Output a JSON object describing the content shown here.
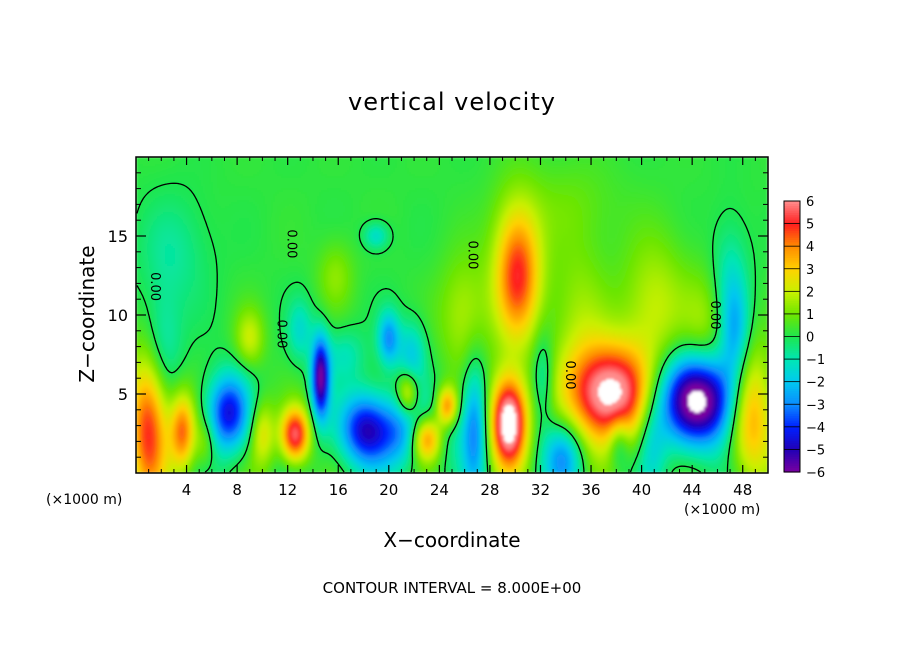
{
  "chart_data": {
    "type": "heatmap",
    "title": "vertical velocity",
    "xlabel": "X−coordinate",
    "ylabel": "Z−coordinate",
    "x_unit_label_left": "(×1000 m)",
    "x_unit_label_right": "(×1000 m)",
    "footer": "CONTOUR INTERVAL = 8.000E+00",
    "xlim": [
      0,
      50
    ],
    "ylim": [
      0,
      20
    ],
    "x_ticks": [
      4,
      8,
      12,
      16,
      20,
      24,
      28,
      32,
      36,
      40,
      44,
      48
    ],
    "y_ticks": [
      5,
      10,
      15
    ],
    "contour_labels": [
      "0.00",
      "0.00",
      "0.00",
      "0.00",
      "0.00",
      "0.00"
    ],
    "colorbar": {
      "ticks": [
        6,
        5,
        4,
        3,
        2,
        1,
        0,
        -1,
        -2,
        -3,
        -4,
        -5,
        -6
      ],
      "tick_labels": [
        "6",
        "5",
        "4",
        "3",
        "2",
        "1",
        "0",
        "−1",
        "−2",
        "−3",
        "−4",
        "−5",
        "−6"
      ],
      "range": [
        -6,
        6
      ],
      "colors": [
        "#7a00a0",
        "#2200b4",
        "#0020ff",
        "#0a8cff",
        "#00c8f0",
        "#00e6b4",
        "#1ee650",
        "#6ee600",
        "#c8f000",
        "#ffd200",
        "#ff8c00",
        "#ff1e1e",
        "#ff8c8c"
      ]
    },
    "features": [
      {
        "x": 29.5,
        "z": 3.5,
        "peak": 7
      },
      {
        "x": 37.5,
        "z": 5,
        "peak": 6.5
      },
      {
        "x": 44,
        "z": 4.5,
        "peak": -6.5
      },
      {
        "x": 30,
        "z": 13,
        "peak": 4.5
      },
      {
        "x": 12.5,
        "z": 2.3,
        "peak": 5
      },
      {
        "x": 23,
        "z": 2.2,
        "peak": 5
      },
      {
        "x": 14.5,
        "z": 6,
        "peak": -6
      }
    ]
  }
}
